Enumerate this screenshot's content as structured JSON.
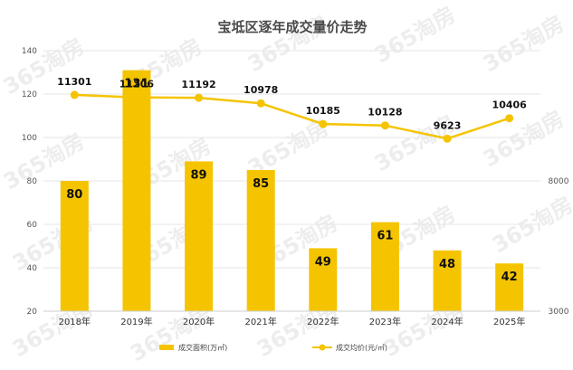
{
  "chart_data": {
    "type": "bar+line",
    "title": "宝坻区逐年成交量价走势",
    "categories": [
      "2018年",
      "2019年",
      "2020年",
      "2021年",
      "2022年",
      "2023年",
      "2024年",
      "2025年"
    ],
    "series": [
      {
        "name": "成交面积(万㎡)",
        "type": "bar",
        "axis": "left",
        "values": [
          80,
          131,
          89,
          85,
          49,
          61,
          48,
          42
        ],
        "labels": [
          "80",
          "131",
          "89",
          "85",
          "49",
          "61",
          "48",
          "42"
        ],
        "color": "#f5c400"
      },
      {
        "name": "成交均价(元/㎡)",
        "type": "line",
        "axis": "right",
        "values": [
          11301,
          11206,
          11192,
          10978,
          10185,
          10128,
          9623,
          10406
        ],
        "labels": [
          "11301",
          "11206",
          "11192",
          "10978",
          "10185",
          "10128",
          "9623",
          "10406"
        ],
        "color": "#f5c400"
      }
    ],
    "y_left": {
      "min": 20,
      "max": 140,
      "ticks": [
        "20",
        "40",
        "60",
        "80",
        "100",
        "120",
        "140"
      ]
    },
    "y_right": {
      "min": 3000,
      "max": 13000,
      "ticks": [
        "3000",
        "8000"
      ]
    },
    "grid": true,
    "legend_position": "bottom"
  },
  "watermark": {
    "text": "365淘房"
  }
}
